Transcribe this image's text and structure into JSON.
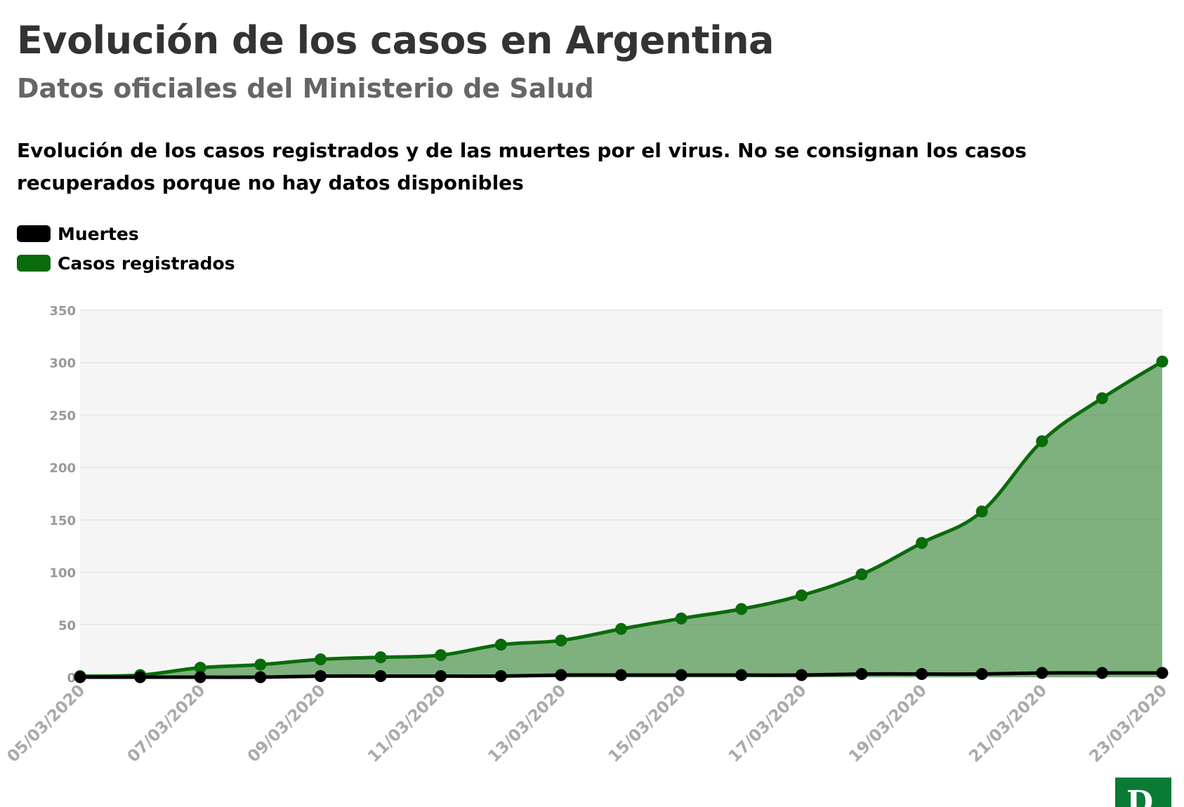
{
  "header": {
    "title": "Evolución de los casos en Argentina",
    "subtitle": "Datos oficiales del Ministerio de Salud",
    "description": "Evolución de los casos registrados y de las muertes por el virus. No se consignan los casos recuperados porque no hay datos disponibles"
  },
  "legend": {
    "items": [
      {
        "label": "Muertes",
        "color": "#000000"
      },
      {
        "label": "Casos registrados",
        "color": "#0a6b0a"
      }
    ]
  },
  "logo": {
    "letter": "D",
    "color": "#0a7a37"
  },
  "chart_data": {
    "type": "area",
    "title": "Evolución de los casos en Argentina",
    "xlabel": "",
    "ylabel": "",
    "ylim": [
      0,
      350
    ],
    "yticks": [
      0,
      50,
      100,
      150,
      200,
      250,
      300,
      350
    ],
    "x": [
      "05/03/2020",
      "06/03/2020",
      "07/03/2020",
      "08/03/2020",
      "09/03/2020",
      "10/03/2020",
      "11/03/2020",
      "12/03/2020",
      "13/03/2020",
      "14/03/2020",
      "15/03/2020",
      "16/03/2020",
      "17/03/2020",
      "18/03/2020",
      "19/03/2020",
      "20/03/2020",
      "21/03/2020",
      "22/03/2020",
      "23/03/2020"
    ],
    "xtick_labels": [
      "05/03/2020",
      "07/03/2020",
      "09/03/2020",
      "11/03/2020",
      "13/03/2020",
      "15/03/2020",
      "17/03/2020",
      "19/03/2020",
      "21/03/2020",
      "23/03/2020"
    ],
    "series": [
      {
        "name": "Casos registrados",
        "color": "#0a6b0a",
        "fill": "rgba(10,110,10,0.5)",
        "values": [
          1,
          2,
          9,
          12,
          17,
          19,
          21,
          31,
          35,
          46,
          56,
          65,
          78,
          98,
          128,
          158,
          225,
          266,
          301
        ]
      },
      {
        "name": "Muertes",
        "color": "#000000",
        "values": [
          0,
          0,
          0,
          0,
          1,
          1,
          1,
          1,
          2,
          2,
          2,
          2,
          2,
          3,
          3,
          3,
          4,
          4,
          4
        ]
      }
    ]
  }
}
